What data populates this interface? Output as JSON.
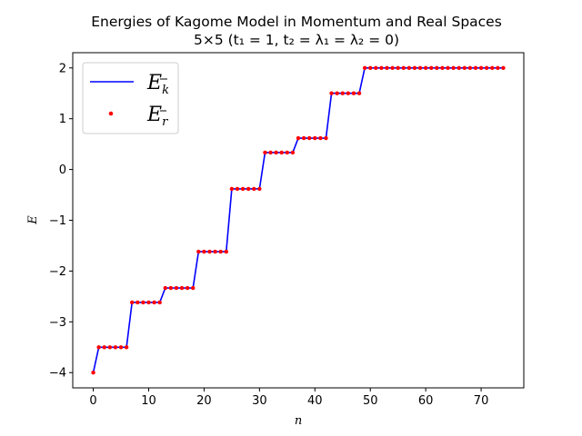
{
  "chart_data": {
    "type": "line",
    "title": "Energies of Kagome Model in Momentum and Real Spaces",
    "subtitle": "5×5   (t₁ = 1, t₂ = λ₁ = λ₂ = 0)",
    "xlabel": "n",
    "ylabel": "E",
    "xlim": [
      -3.7,
      77.7
    ],
    "ylim": [
      -4.3,
      2.3
    ],
    "xticks": [
      0,
      10,
      20,
      30,
      40,
      50,
      60,
      70
    ],
    "yticks": [
      -4,
      -3,
      -2,
      -1,
      0,
      1,
      2
    ],
    "ytick_labels": [
      "−4",
      "−3",
      "−2",
      "−1",
      "0",
      "1",
      "2"
    ],
    "grid": false,
    "legend_position": "top-left",
    "levels": [
      {
        "count": 1,
        "value": -4.0
      },
      {
        "count": 6,
        "value": -3.5
      },
      {
        "count": 6,
        "value": -2.618
      },
      {
        "count": 6,
        "value": -2.333
      },
      {
        "count": 6,
        "value": -1.618
      },
      {
        "count": 6,
        "value": -0.382
      },
      {
        "count": 6,
        "value": 0.333
      },
      {
        "count": 6,
        "value": 0.618
      },
      {
        "count": 6,
        "value": 1.5
      },
      {
        "count": 26,
        "value": 2.0
      }
    ],
    "series": [
      {
        "name": "E_k",
        "label_main": "E",
        "label_sub": "k",
        "style": "line",
        "color": "#0000ff"
      },
      {
        "name": "E_r",
        "label_main": "E",
        "label_sub": "r",
        "style": "points",
        "color": "#ff0000"
      }
    ]
  }
}
